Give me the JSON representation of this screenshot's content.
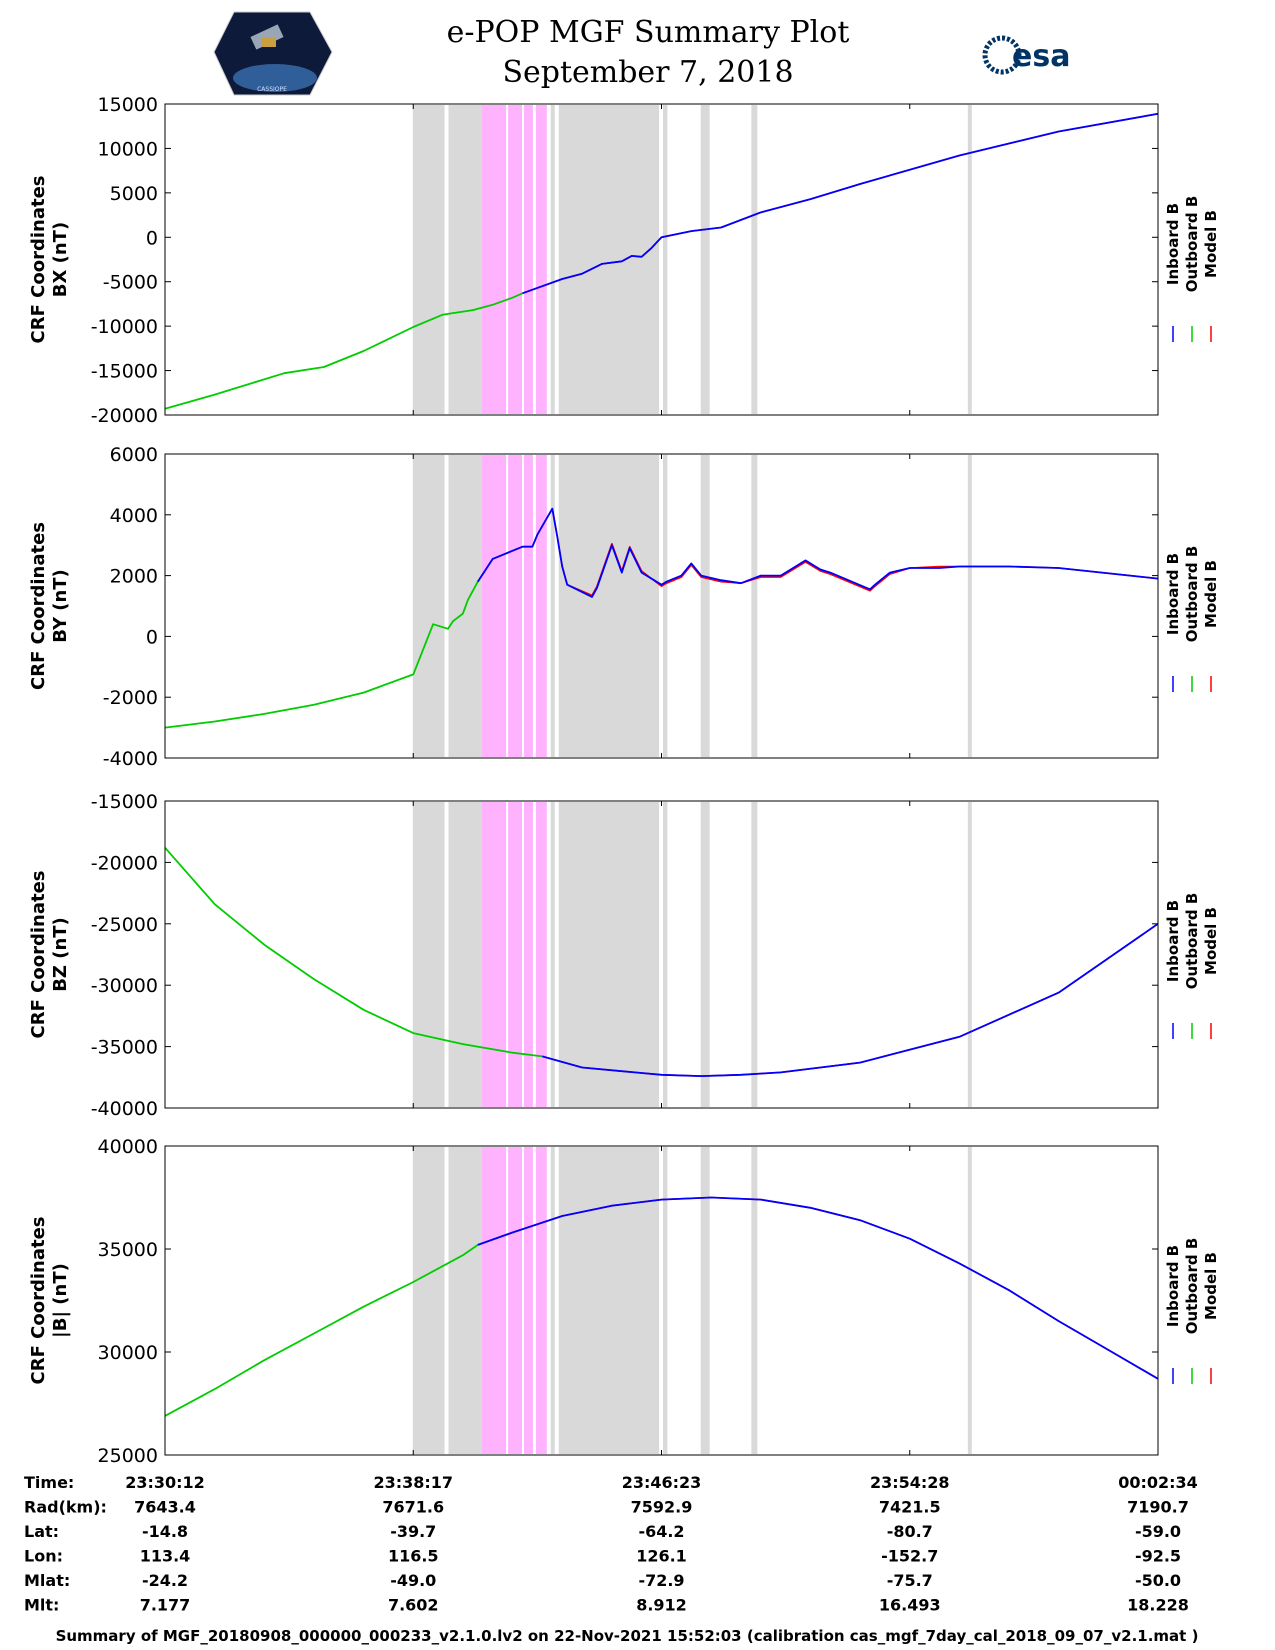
{
  "header": {
    "title": "e-POP MGF Summary Plot",
    "date": "September 7, 2018",
    "cassiope_logo_text": "CASSIOPE",
    "esa_logo_text": "esa"
  },
  "colors": {
    "inboard": "#0000ff",
    "outboard": "#00cc00",
    "model": "#ff0000",
    "gray_band": "#d9d9d9",
    "pink_band": "#ffb3ff"
  },
  "legend": {
    "entries": [
      "Inboard B",
      "Outboard B",
      "Model B"
    ]
  },
  "x_ticks": [
    "23:30:12",
    "23:38:17",
    "23:46:23",
    "23:54:28",
    "00:02:34"
  ],
  "bands": {
    "gray": [
      [
        0.2495,
        0.2815
      ],
      [
        0.2855,
        0.319
      ],
      [
        0.3885,
        0.3925
      ],
      [
        0.3965,
        0.4975
      ],
      [
        0.5015,
        0.506
      ],
      [
        0.5395,
        0.5485
      ],
      [
        0.5905,
        0.5965
      ],
      [
        0.8085,
        0.8125
      ]
    ],
    "pink": [
      [
        0.319,
        0.3435
      ],
      [
        0.3455,
        0.3595
      ],
      [
        0.3615,
        0.3705
      ],
      [
        0.3735,
        0.3845
      ]
    ]
  },
  "chart_data": [
    {
      "type": "line",
      "ylabel": [
        "CRF Coordinates",
        "BX (nT)"
      ],
      "ylim": [
        -20000,
        15000
      ],
      "yticks": [
        "15000",
        "10000",
        "5000",
        "0",
        "-5000",
        "-10000",
        "-15000",
        "-20000"
      ],
      "xrange_fraction": [
        0,
        1
      ],
      "switch_fraction": 0.36,
      "series": [
        {
          "name": "Outboard B",
          "x": [
            0,
            0.05,
            0.12,
            0.16,
            0.2,
            0.25,
            0.28,
            0.31,
            0.33,
            0.35,
            0.36
          ],
          "values": [
            -19300,
            -17700,
            -15300,
            -14600,
            -12800,
            -10100,
            -8700,
            -8200,
            -7600,
            -6800,
            -6300
          ]
        },
        {
          "name": "Inboard B",
          "x": [
            0.36,
            0.4,
            0.42,
            0.44,
            0.46,
            0.47,
            0.48,
            0.49,
            0.5,
            0.53,
            0.56,
            0.6,
            0.65,
            0.7,
            0.8,
            0.9,
            1.0
          ],
          "values": [
            -6300,
            -4700,
            -4100,
            -3000,
            -2700,
            -2100,
            -2200,
            -1200,
            0,
            700,
            1100,
            2800,
            4300,
            6000,
            9200,
            11900,
            13900
          ]
        },
        {
          "name": "Model B",
          "x": [
            0.36,
            0.4,
            0.42,
            0.44,
            0.46,
            0.47,
            0.48,
            0.49,
            0.5,
            0.53,
            0.56,
            0.6,
            0.65,
            0.7,
            0.8,
            0.9,
            1.0
          ],
          "values": [
            -6300,
            -4700,
            -4100,
            -3000,
            -2700,
            -2100,
            -2200,
            -1200,
            0,
            700,
            1100,
            2800,
            4300,
            6000,
            9200,
            11900,
            13900
          ]
        }
      ]
    },
    {
      "type": "line",
      "ylabel": [
        "CRF Coordinates",
        "BY (nT)"
      ],
      "ylim": [
        -4000,
        6000
      ],
      "yticks": [
        "6000",
        "4000",
        "2000",
        "0",
        "-2000",
        "-4000"
      ],
      "switch_fraction": 0.315,
      "series": [
        {
          "name": "Outboard B",
          "x": [
            0,
            0.05,
            0.1,
            0.15,
            0.2,
            0.25,
            0.27,
            0.285,
            0.29,
            0.3,
            0.305,
            0.315
          ],
          "values": [
            -3000,
            -2800,
            -2550,
            -2250,
            -1850,
            -1250,
            400,
            250,
            500,
            750,
            1200,
            1800
          ]
        },
        {
          "name": "Inboard B",
          "x": [
            0.315,
            0.33,
            0.36,
            0.37,
            0.375,
            0.39,
            0.395,
            0.4,
            0.405,
            0.43,
            0.435,
            0.45,
            0.46,
            0.468,
            0.48,
            0.48,
            0.5,
            0.505,
            0.52,
            0.53,
            0.54,
            0.56,
            0.58,
            0.6,
            0.62,
            0.645,
            0.66,
            0.67,
            0.71,
            0.715,
            0.73,
            0.75,
            0.78,
            0.8,
            0.85,
            0.9,
            1.0
          ],
          "values": [
            1800,
            2550,
            2950,
            2950,
            3350,
            4200,
            3300,
            2300,
            1700,
            1300,
            1600,
            3000,
            2100,
            2900,
            2100,
            2100,
            1700,
            1800,
            2000,
            2400,
            2000,
            1850,
            1750,
            2000,
            2000,
            2500,
            2200,
            2100,
            1550,
            1700,
            2100,
            2250,
            2250,
            2300,
            2300,
            2250,
            1900
          ]
        },
        {
          "name": "Model B",
          "x": [
            0.315,
            0.33,
            0.36,
            0.37,
            0.375,
            0.39,
            0.395,
            0.4,
            0.405,
            0.43,
            0.435,
            0.45,
            0.46,
            0.468,
            0.48,
            0.5,
            0.505,
            0.52,
            0.53,
            0.54,
            0.56,
            0.58,
            0.6,
            0.62,
            0.645,
            0.66,
            0.67,
            0.71,
            0.715,
            0.73,
            0.75,
            0.78,
            0.8,
            0.85,
            0.9,
            1.0
          ],
          "values": [
            1800,
            2550,
            2950,
            2950,
            3350,
            4200,
            3300,
            2300,
            1700,
            1350,
            1650,
            3050,
            2150,
            2950,
            2150,
            1650,
            1750,
            1950,
            2350,
            1950,
            1800,
            1750,
            1950,
            1950,
            2450,
            2150,
            2050,
            1500,
            1650,
            2050,
            2250,
            2300,
            2300,
            2300,
            2250,
            1900
          ]
        }
      ]
    },
    {
      "type": "line",
      "ylabel": [
        "CRF Coordinates",
        "BZ (nT)"
      ],
      "ylim": [
        -40000,
        -15000
      ],
      "yticks": [
        "-15000",
        "-20000",
        "-25000",
        "-30000",
        "-35000",
        "-40000"
      ],
      "switch_fraction": 0.38,
      "series": [
        {
          "name": "Outboard B",
          "x": [
            0,
            0.05,
            0.1,
            0.15,
            0.2,
            0.25,
            0.3,
            0.35,
            0.38
          ],
          "values": [
            -18800,
            -23400,
            -26700,
            -29500,
            -32000,
            -33900,
            -34800,
            -35500,
            -35800
          ]
        },
        {
          "name": "Inboard B",
          "x": [
            0.38,
            0.42,
            0.46,
            0.5,
            0.54,
            0.58,
            0.62,
            0.7,
            0.8,
            0.9,
            1.0
          ],
          "values": [
            -35800,
            -36700,
            -37000,
            -37300,
            -37400,
            -37300,
            -37100,
            -36300,
            -34200,
            -30600,
            -25000
          ]
        },
        {
          "name": "Model B",
          "x": [
            0.38,
            0.42,
            0.46,
            0.5,
            0.54,
            0.58,
            0.62,
            0.7,
            0.8,
            0.9,
            1.0
          ],
          "values": [
            -35800,
            -36700,
            -37000,
            -37300,
            -37400,
            -37300,
            -37100,
            -36300,
            -34200,
            -30600,
            -25000
          ]
        }
      ]
    },
    {
      "type": "line",
      "ylabel": [
        "CRF Coordinates",
        "|B| (nT)"
      ],
      "ylim": [
        25000,
        40000
      ],
      "yticks": [
        "40000",
        "35000",
        "30000",
        "25000"
      ],
      "switch_fraction": 0.315,
      "series": [
        {
          "name": "Outboard B",
          "x": [
            0,
            0.05,
            0.1,
            0.15,
            0.2,
            0.25,
            0.3,
            0.315
          ],
          "values": [
            26900,
            28200,
            29600,
            30900,
            32200,
            33400,
            34700,
            35200
          ]
        },
        {
          "name": "Inboard B",
          "x": [
            0.315,
            0.35,
            0.4,
            0.45,
            0.5,
            0.55,
            0.6,
            0.65,
            0.7,
            0.75,
            0.8,
            0.85,
            0.9,
            0.95,
            1.0
          ],
          "values": [
            35200,
            35800,
            36600,
            37100,
            37400,
            37500,
            37400,
            37000,
            36400,
            35500,
            34300,
            33000,
            31500,
            30100,
            28700
          ]
        },
        {
          "name": "Model B",
          "x": [
            0.315,
            0.35,
            0.4,
            0.45,
            0.5,
            0.55,
            0.6,
            0.65,
            0.7,
            0.75,
            0.8,
            0.85,
            0.9,
            0.95,
            1.0
          ],
          "values": [
            35200,
            35800,
            36600,
            37100,
            37400,
            37500,
            37400,
            37000,
            36400,
            35500,
            34300,
            33000,
            31500,
            30100,
            28700
          ]
        }
      ]
    }
  ],
  "table": {
    "rows": [
      {
        "label": "Time:",
        "values": [
          "23:30:12",
          "23:38:17",
          "23:46:23",
          "23:54:28",
          "00:02:34"
        ]
      },
      {
        "label": "Rad(km):",
        "values": [
          "7643.4",
          "7671.6",
          "7592.9",
          "7421.5",
          "7190.7"
        ]
      },
      {
        "label": "Lat:",
        "values": [
          "-14.8",
          "-39.7",
          "-64.2",
          "-80.7",
          "-59.0"
        ]
      },
      {
        "label": "Lon:",
        "values": [
          "113.4",
          "116.5",
          "126.1",
          "-152.7",
          "-92.5"
        ]
      },
      {
        "label": "Mlat:",
        "values": [
          "-24.2",
          "-49.0",
          "-72.9",
          "-75.7",
          "-50.0"
        ]
      },
      {
        "label": "Mlt:",
        "values": [
          "7.177",
          "7.602",
          "8.912",
          "16.493",
          "18.228"
        ]
      }
    ]
  },
  "footer": "Summary of MGF_20180908_000000_000233_v2.1.0.lv2 on 22-Nov-2021 15:52:03 (calibration cas_mgf_7day_cal_2018_09_07_v2.1.mat )"
}
